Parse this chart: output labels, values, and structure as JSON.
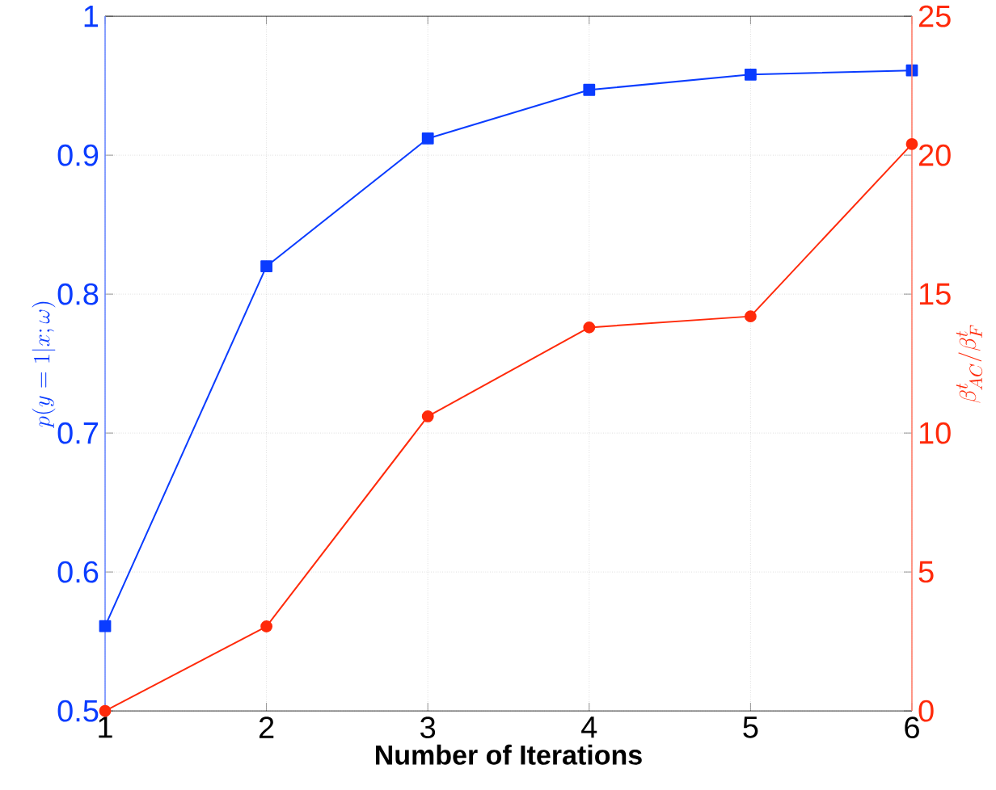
{
  "chart_data": {
    "type": "line",
    "xlabel": "Number of Iterations",
    "ylabel": "p(y=1|x;\\omega)",
    "y2label": "\\beta^t_{AC}/\\beta^t_F",
    "x": [
      1,
      2,
      3,
      4,
      5,
      6
    ],
    "xlim": [
      1,
      6
    ],
    "xticks": [
      1,
      2,
      3,
      4,
      5,
      6
    ],
    "ylim": [
      0.5,
      1
    ],
    "yticks": [
      0.5,
      0.6,
      0.7,
      0.8,
      0.9,
      1
    ],
    "y2lim": [
      0,
      25
    ],
    "y2ticks": [
      0,
      5,
      10,
      15,
      20,
      25
    ],
    "grid": true,
    "series": [
      {
        "color": "#0a3cff",
        "marker": "square",
        "values": [
          0.561,
          0.82,
          0.912,
          0.947,
          0.958,
          0.961
        ]
      },
      {
        "color": "#ff2a0a",
        "marker": "circle",
        "axis": "y2",
        "values": [
          0,
          3.04,
          10.6,
          13.8,
          14.2,
          20.4
        ]
      }
    ]
  }
}
